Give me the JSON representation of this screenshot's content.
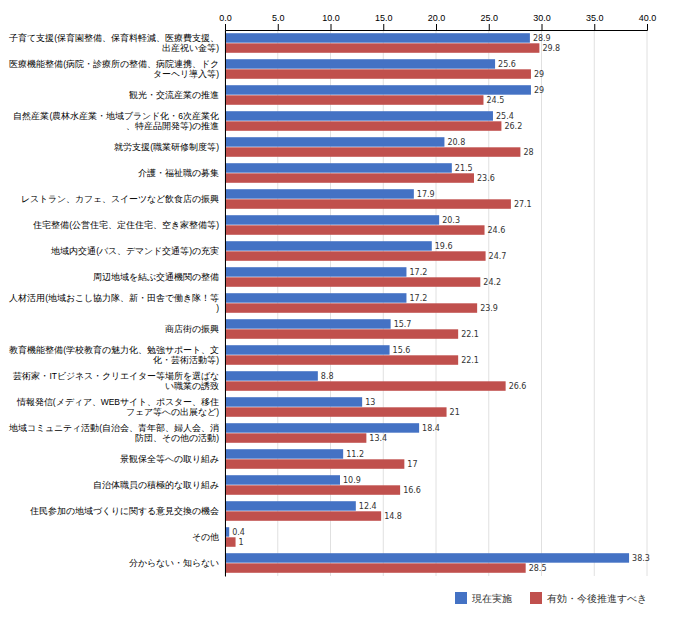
{
  "chart_data": {
    "type": "bar",
    "orientation": "horizontal",
    "categories": [
      "子育て支援(保育園整備、保育料軽減、医療費支援、出産祝い金等)",
      "医療機能整備(病院・診療所の整備、病院連携、ドクターヘリ導入等)",
      "観光・交流産業の推進",
      "自然産業(農林水産業・地域ブランド化・6次産業化、特産品開発等)の推進",
      "就労支援(職業研修制度等)",
      "介護・福祉職の募集",
      "レストラン、カフェ、スイーツなど飲食店の振興",
      "住宅整備(公営住宅、定住住宅、空き家整備等)",
      "地域内交通(バス、デマンド交通等)の充実",
      "周辺地域を結ぶ交通機関の整備",
      "人材活用(地域おこし協力隊、新・田舎で働き隊！等)",
      "商店街の振興",
      "教育機能整備(学校教育の魅力化、勉強サポート、文化・芸術活動等)",
      "芸術家・ITビジネス・クリエイター等場所を選ばない職業の誘致",
      "情報発信(メディア、WEBサイト、ポスター、移住フェア等への出展など)",
      "地域コミュニティ活動(自治会、青年部、婦人会、消防団、その他の活動)",
      "景観保全等への取り組み",
      "自治体職員の積極的な取り組み",
      "住民参加の地域づくりに関する意見交換の機会",
      "その他",
      "分からない・知らない"
    ],
    "series": [
      {
        "name": "現在実施",
        "color": "#4472C4",
        "values": [
          28.9,
          25.6,
          29.0,
          25.4,
          20.8,
          21.5,
          17.9,
          20.3,
          19.6,
          17.2,
          17.2,
          15.7,
          15.6,
          8.8,
          13.0,
          18.4,
          11.2,
          10.9,
          12.4,
          0.4,
          38.3
        ]
      },
      {
        "name": "有効・今後推進すべき",
        "color": "#C0504D",
        "values": [
          29.8,
          29.0,
          24.5,
          26.2,
          28.0,
          23.6,
          27.1,
          24.6,
          24.7,
          24.2,
          23.9,
          22.1,
          22.1,
          26.6,
          21.0,
          13.4,
          17.0,
          16.6,
          14.8,
          1.0,
          28.5
        ]
      }
    ],
    "xlim": [
      0,
      40
    ],
    "xticks": [
      {
        "value": 0,
        "label": "0.0"
      },
      {
        "value": 5,
        "label": "5.0"
      },
      {
        "value": 10,
        "label": "10.0"
      },
      {
        "value": 15,
        "label": "15.0"
      },
      {
        "value": 20,
        "label": "20.0"
      },
      {
        "value": 25,
        "label": "25.0"
      },
      {
        "value": 30,
        "label": "30.0"
      },
      {
        "value": 35,
        "label": "35.0"
      },
      {
        "value": 40,
        "label": "40.0"
      }
    ],
    "grid": true,
    "legend": "lower right",
    "data_labels": true
  }
}
